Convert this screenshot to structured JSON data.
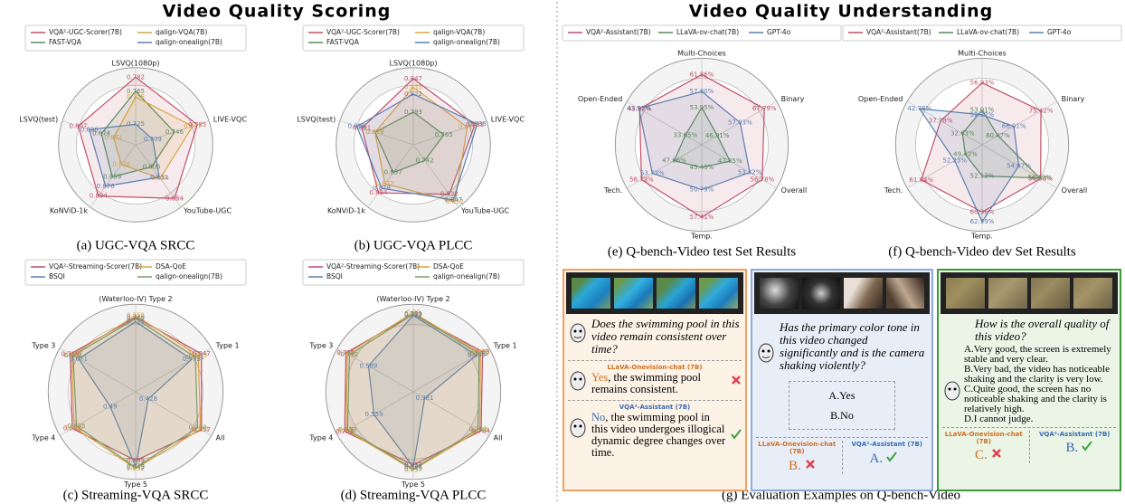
{
  "figure": {
    "left_title": "Video Quality Scoring",
    "right_title": "Video Quality Understanding",
    "examples_caption": "(g) Evaluation Examples on Q-bench-Video"
  },
  "chart_data": [
    {
      "type": "radar",
      "caption": "(a) UGC-VQA SRCC",
      "legend_columns": 2,
      "axes": [
        "LSVQ(1080p)",
        "LIVE-VQC",
        "YouTube-UGC",
        "KoNViD-1k",
        "LSVQ(test)"
      ],
      "axis_ranges": [
        [
          0.7,
          0.79
        ],
        [
          0.68,
          0.8
        ],
        [
          0.75,
          0.9
        ],
        [
          0.8,
          0.91
        ],
        [
          0.84,
          0.91
        ]
      ],
      "series": [
        {
          "name": "VQA²-UGC-Scorer(7B)",
          "color": "#c0506a",
          "values": [
            0.782,
            0.785,
            0.884,
            0.894,
            0.897
          ]
        },
        {
          "name": "FAST-VQA",
          "color": "#5a8a5a",
          "values": [
            0.765,
            0.746,
            0.805,
            0.859,
            0.874
          ]
        },
        {
          "name": "qalign-VQA(7B)",
          "color": "#d9a441",
          "values": [
            0.758,
            0.777,
            0.834,
            0.836,
            0.862
          ]
        },
        {
          "name": "qalign-onealign(7B)",
          "color": "#5b7fb0",
          "values": [
            0.725,
            0.709,
            0.831,
            0.876,
            0.886
          ]
        }
      ]
    },
    {
      "type": "radar",
      "caption": "(b) UGC-VQA PLCC",
      "legend_columns": 2,
      "axes": [
        "LSVQ(1080p)",
        "LIVE-VQC",
        "YouTube-UGC",
        "KoNViD-1k",
        "LSVQ(test)"
      ],
      "axis_ranges": [
        [
          0.74,
          0.86
        ],
        [
          0.7,
          0.85
        ],
        [
          0.7,
          0.86
        ],
        [
          0.82,
          0.9
        ],
        [
          0.84,
          0.91
        ]
      ],
      "series": [
        {
          "name": "VQA²-UGC-Scorer(7B)",
          "color": "#c0506a",
          "values": [
            0.847,
            0.831,
            0.832,
            0.884,
            0.891
          ]
        },
        {
          "name": "FAST-VQA",
          "color": "#5a8a5a",
          "values": [
            0.793,
            0.765,
            0.742,
            0.857,
            0.878
          ]
        },
        {
          "name": "qalign-VQA(7B)",
          "color": "#d9a441",
          "values": [
            0.833,
            0.815,
            0.852,
            0.872,
            0.878
          ]
        },
        {
          "name": "qalign-onealign(7B)",
          "color": "#5b7fb0",
          "values": [
            0.822,
            0.836,
            0.847,
            0.878,
            0.896
          ]
        }
      ]
    },
    {
      "type": "radar",
      "caption": "(c) Streaming-VQA SRCC",
      "legend_columns": 2,
      "axes": [
        "(Waterloo-IV) Type 2",
        "Type 1",
        "All",
        "Type 5",
        "Type 4",
        "Type 3"
      ],
      "axis_ranges": [
        [
          0.35,
          0.8
        ],
        [
          0.35,
          0.9
        ],
        [
          0.35,
          0.8
        ],
        [
          0.35,
          0.9
        ],
        [
          0.35,
          0.75
        ],
        [
          0.35,
          0.76
        ]
      ],
      "series": [
        {
          "name": "VQA²-Streaming-Scorer(7B)",
          "color": "#c0506a",
          "values": [
            0.748,
            0.847,
            0.757,
            0.799,
            0.698,
            0.718
          ]
        },
        {
          "name": "BSQI",
          "color": "#5b7fb0",
          "values": [
            0.725,
            0.773,
            0.428,
            0.839,
            0.49,
            0.671
          ]
        },
        {
          "name": "DSA-QoE",
          "color": "#d9a441",
          "values": [
            0.758,
            0.823,
            0.751,
            0.852,
            0.688,
            0.709
          ]
        },
        {
          "name": "qalign-onealign(7B)",
          "color": "#7a9a6a",
          "values": [
            0.742,
            0.801,
            0.733,
            0.845,
            0.675,
            0.702
          ]
        }
      ]
    },
    {
      "type": "radar",
      "caption": "(d) Streaming-VQA PLCC",
      "legend_columns": 2,
      "axes": [
        "(Waterloo-IV) Type 2",
        "Type 1",
        "All",
        "Type 5",
        "Type 4",
        "Type 3"
      ],
      "axis_ranges": [
        [
          0.3,
          0.82
        ],
        [
          0.3,
          0.92
        ],
        [
          0.3,
          0.82
        ],
        [
          0.3,
          0.9
        ],
        [
          0.3,
          0.78
        ],
        [
          0.3,
          0.77
        ]
      ],
      "series": [
        {
          "name": "VQA²-Streaming-Scorer(7B)",
          "color": "#c0506a",
          "values": [
            0.779,
            0.89,
            0.784,
            0.822,
            0.752,
            0.735
          ]
        },
        {
          "name": "BSQI",
          "color": "#5b7fb0",
          "values": [
            0.772,
            0.839,
            0.381,
            0.837,
            0.559,
            0.589
          ]
        },
        {
          "name": "DSA-QoE",
          "color": "#d9a441",
          "values": [
            0.79,
            0.872,
            0.774,
            0.857,
            0.741,
            0.726
          ]
        },
        {
          "name": "qalign-onealign(7B)",
          "color": "#7a9a6a",
          "values": [
            0.781,
            0.861,
            0.762,
            0.849,
            0.733,
            0.712
          ]
        }
      ]
    },
    {
      "type": "radar",
      "caption": "(e) Q-bench-Video test Set Results",
      "legend_columns": 3,
      "axes": [
        "Multi-Choices",
        "Binary",
        "Overall",
        "Temp.",
        "Tech.",
        "Open-Ended"
      ],
      "axis_ranges": [
        [
          45,
          65
        ],
        [
          40,
          72
        ],
        [
          40,
          60
        ],
        [
          40,
          60
        ],
        [
          40,
          60
        ],
        [
          30,
          46
        ]
      ],
      "series": [
        {
          "name": "VQA²-Assistant(7B)",
          "color": "#c0506a",
          "values": [
            61.86,
            67.79,
            56.78,
            57.41,
            56.73,
            43.82
          ],
          "value_labels": [
            "61.86%",
            "67.79%",
            "56.78%",
            "57.41%",
            "56.73%",
            "43.82%"
          ]
        },
        {
          "name": "LLaVA-ov-chat(7B)",
          "color": "#5a8a5a",
          "values": [
            53.95,
            46.91,
            47.85,
            45.45,
            47.66,
            33.65
          ],
          "value_labels": [
            "53.95%",
            "46.91%",
            "47.85%",
            "45.45%",
            "47.66%",
            "33.65%"
          ]
        },
        {
          "name": "GPT-4o",
          "color": "#5b7fb0",
          "values": [
            57.8,
            57.03,
            53.32,
            50.79,
            53.73,
            43.97
          ],
          "value_labels": [
            "57.80%",
            "57.03%",
            "53.32%",
            "50.79%",
            "53.73%",
            "43.97%"
          ]
        }
      ]
    },
    {
      "type": "radar",
      "caption": "(f) Q-bench-Video dev Set Results",
      "legend_columns": 3,
      "axes": [
        "Multi-Choices",
        "Binary",
        "Overall",
        "Temp.",
        "Tech.",
        "Open-Ended"
      ],
      "axis_ranges": [
        [
          48,
          60
        ],
        [
          55,
          80
        ],
        [
          50,
          58
        ],
        [
          45,
          64
        ],
        [
          45,
          64
        ],
        [
          28,
          45
        ]
      ],
      "series": [
        {
          "name": "VQA²-Assistant(7B)",
          "color": "#c0506a",
          "values": [
            56.93,
            75.42,
            56.5,
            60.36,
            61.04,
            37.78
          ],
          "value_labels": [
            "56.93%",
            "75.42%",
            "56.50%",
            "60.36%",
            "61.04%",
            "37.78%"
          ]
        },
        {
          "name": "LLaVA-ov-chat(7B)",
          "color": "#5a8a5a",
          "values": [
            53.01,
            60.47,
            56.39,
            52.12,
            49.42,
            32.63
          ],
          "value_labels": [
            "53.01%",
            "60.47%",
            "56.39%",
            "52.12%",
            "49.42%",
            "32.63%"
          ]
        },
        {
          "name": "GPT-4o",
          "color": "#5b7fb0",
          "values": [
            52.32,
            66.01,
            54.07,
            62.59,
            52.23,
            42.78
          ],
          "value_labels": [
            "52.32%",
            "66.01%",
            "54.07%",
            "62.59%",
            "52.23%",
            "42.78%"
          ]
        }
      ]
    }
  ],
  "examples": [
    {
      "question": "Does the swimming pool in this video remain consistent over time?",
      "responses": [
        {
          "model": "LLaVA-Onevision-chat (7B)",
          "lead": "Yes",
          "rest": ", the swimming pool remains consistent."
        },
        {
          "model": "VQA²-Assistant (7B)",
          "lead": "No",
          "rest": ", the swimming pool in this video undergoes illogical dynamic degree changes over time."
        }
      ]
    },
    {
      "question": "Has the primary color tone in this video changed significantly and is the camera shaking violently?",
      "options": [
        "A.Yes",
        "B.No"
      ],
      "responses": [
        {
          "model": "LLaVA-Onevision-chat (7B)",
          "lead": "B."
        },
        {
          "model": "VQA²-Assistant (7B)",
          "lead": "A."
        }
      ]
    },
    {
      "question": "How is the overall quality of this video?",
      "options": [
        "A.Very good, the screen is extremely stable and very clear.",
        "B.Very bad, the video has noticeable shaking and the clarity is very low.",
        "C.Quite good, the screen has no noticeable shaking and the clarity is relatively high.",
        "D.I cannot judge."
      ],
      "responses": [
        {
          "model": "LLaVA-Onevision-chat (7B)",
          "lead": "C."
        },
        {
          "model": "VQA²-Assistant (7B)",
          "lead": "B."
        }
      ]
    }
  ]
}
